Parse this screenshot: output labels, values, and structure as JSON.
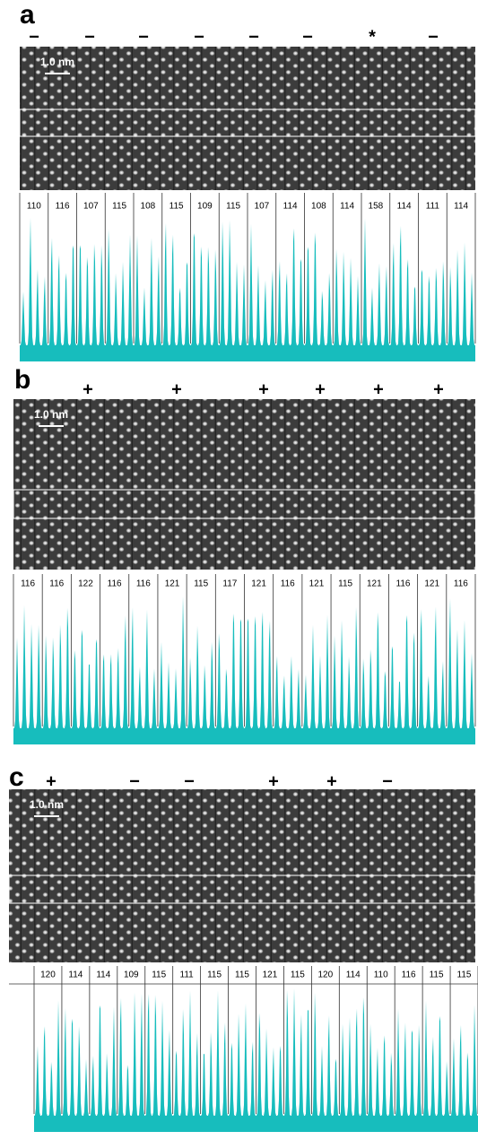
{
  "panels": [
    {
      "label": "a",
      "signs": [
        "−",
        "−",
        "−",
        "−",
        "−",
        "−",
        "*",
        "−"
      ],
      "scale_bar": "1.0 nm",
      "spacings": [
        110,
        116,
        107,
        115,
        108,
        115,
        109,
        115,
        107,
        114,
        108,
        114,
        158,
        114,
        111,
        114
      ]
    },
    {
      "label": "b",
      "signs": [
        "+",
        "+",
        "+",
        "+",
        "+",
        "+"
      ],
      "scale_bar": "1.0 nm",
      "spacings": [
        116,
        116,
        122,
        116,
        116,
        121,
        115,
        117,
        121,
        116,
        121,
        115,
        121,
        116,
        121,
        116
      ]
    },
    {
      "label": "c",
      "signs": [
        "+",
        "−",
        "−",
        "+",
        "+",
        "−"
      ],
      "scale_bar": "1.0 nm",
      "spacings": [
        120,
        114,
        114,
        109,
        115,
        111,
        115,
        115,
        121,
        115,
        120,
        114,
        110,
        116,
        115,
        115
      ]
    }
  ]
}
